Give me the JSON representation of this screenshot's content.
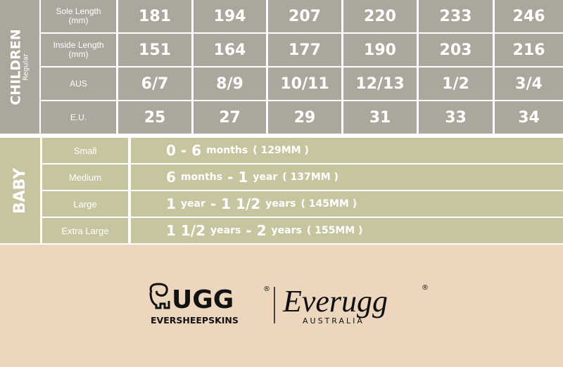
{
  "children": {
    "title": "CHILDREN",
    "subtitle": "Regular",
    "rows": [
      {
        "label": "Sole Length\n(mm)",
        "cells": [
          "181",
          "194",
          "207",
          "220",
          "233",
          "246"
        ]
      },
      {
        "label": "Inside Length\n(mm)",
        "cells": [
          "151",
          "164",
          "177",
          "190",
          "203",
          "216"
        ]
      },
      {
        "label": "AUS",
        "cells": [
          "6/7",
          "8/9",
          "10/11",
          "12/13",
          "1/2",
          "3/4"
        ]
      },
      {
        "label": "E.U.",
        "cells": [
          "25",
          "27",
          "29",
          "31",
          "33",
          "34"
        ]
      }
    ]
  },
  "baby": {
    "title": "BABY",
    "rows": [
      {
        "label": "Small",
        "parts": [
          {
            "text": "0 - 6",
            "big": true
          },
          {
            "text": "months",
            "big": false
          },
          {
            "text": "( 129MM )",
            "big": false
          }
        ]
      },
      {
        "label": "Medium",
        "parts": [
          {
            "text": "6",
            "big": true
          },
          {
            "text": "months",
            "big": false
          },
          {
            "text": "- 1",
            "big": true
          },
          {
            "text": "year",
            "big": false
          },
          {
            "text": "( 137MM )",
            "big": false
          }
        ]
      },
      {
        "label": "Large",
        "parts": [
          {
            "text": "1",
            "big": true
          },
          {
            "text": "year",
            "big": false
          },
          {
            "text": "- 1 1/2",
            "big": true
          },
          {
            "text": "years",
            "big": false
          },
          {
            "text": "( 145MM )",
            "big": false
          }
        ]
      },
      {
        "label": "Extra Large",
        "parts": [
          {
            "text": "1 1/2",
            "big": true
          },
          {
            "text": "years",
            "big": false
          },
          {
            "text": "- 2",
            "big": true
          },
          {
            "text": "years",
            "big": false
          },
          {
            "text": "( 155MM )",
            "big": false
          }
        ]
      }
    ]
  },
  "logo": {
    "brand": "UGG",
    "registered": "®",
    "tagline": "EVERSHEEPSKINS",
    "brand2": "Everugg",
    "tagline2": "AUSTRALIA"
  }
}
